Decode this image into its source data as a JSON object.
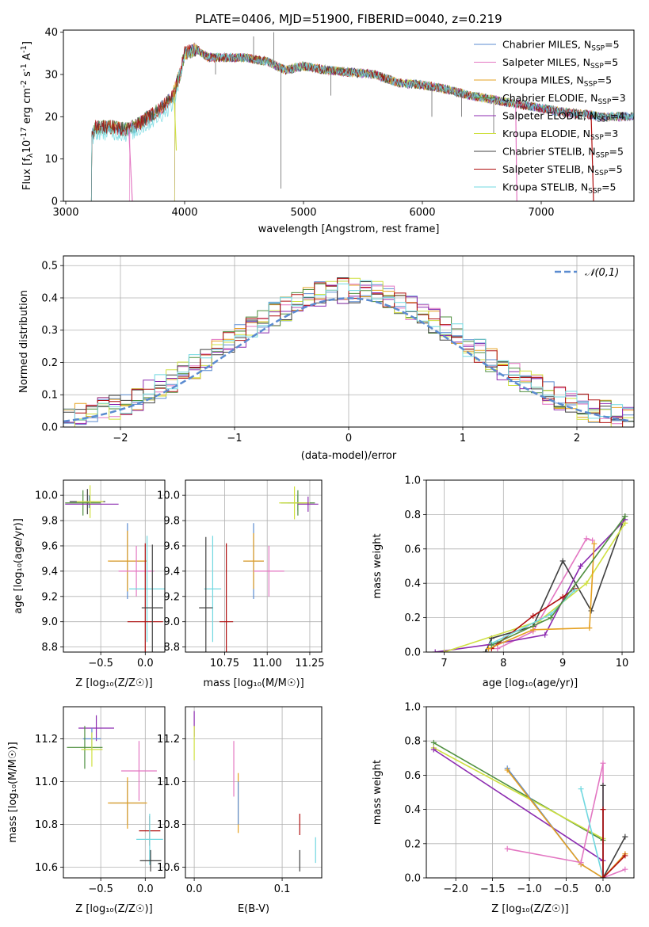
{
  "series_names": [
    "Chabrier MILES",
    "Salpeter MILES",
    "Kroupa MILES",
    "Chabrier ELODIE",
    "Salpeter ELODIE",
    "Kroupa ELODIE",
    "Chabrier STELIB",
    "Salpeter STELIB",
    "Kroupa STELIB"
  ],
  "nssp": [
    5,
    5,
    5,
    3,
    4,
    3,
    5,
    5,
    5
  ],
  "colors": [
    "#5b8bd0",
    "#e377c2",
    "#e5a020",
    "#4f8f3f",
    "#8c2bb0",
    "#cfe040",
    "#404040",
    "#b01010",
    "#70d8e0"
  ],
  "chart_data": [
    {
      "id": "spectrum",
      "type": "line",
      "title": "PLATE=0406, MJD=51900, FIBERID=0040, z=0.219",
      "xlabel": "wavelength [Angstrom, rest frame]",
      "ylabel_parts": [
        "Flux [f",
        "λ",
        "10",
        "-17",
        " erg cm",
        "-2",
        " s",
        "-1",
        " A",
        "-1",
        "]"
      ],
      "xlim": [
        2980,
        7780
      ],
      "ylim": [
        0,
        40.5
      ],
      "xticks": [
        3000,
        4000,
        5000,
        6000,
        7000
      ],
      "yticks": [
        0,
        10,
        20,
        30,
        40
      ],
      "grid": false,
      "legend_position": "upper-right",
      "legend_label_prefix": "N",
      "legend_label_sub": "SSP",
      "continuum": [
        [
          3210,
          14.5
        ],
        [
          3250,
          17.5
        ],
        [
          3400,
          17.5
        ],
        [
          3500,
          17
        ],
        [
          3600,
          18
        ],
        [
          3700,
          20
        ],
        [
          3800,
          22
        ],
        [
          3900,
          25
        ],
        [
          3960,
          30
        ],
        [
          4000,
          35
        ],
        [
          4100,
          36
        ],
        [
          4200,
          34
        ],
        [
          4300,
          34
        ],
        [
          4500,
          34
        ],
        [
          4700,
          33
        ],
        [
          4850,
          31
        ],
        [
          5000,
          32
        ],
        [
          5200,
          31
        ],
        [
          5400,
          30.5
        ],
        [
          5600,
          30
        ],
        [
          5800,
          28
        ],
        [
          6000,
          27.5
        ],
        [
          6200,
          26.5
        ],
        [
          6400,
          25
        ],
        [
          6600,
          24
        ],
        [
          6800,
          23
        ],
        [
          7000,
          22
        ],
        [
          7200,
          21
        ],
        [
          7400,
          20.5
        ],
        [
          7500,
          20
        ]
      ],
      "dropouts": [
        [
          3530,
          3560,
          0
        ],
        [
          3910,
          3930,
          12
        ],
        [
          6785,
          6795,
          0
        ],
        [
          7420,
          7440,
          0
        ]
      ],
      "spikes": [
        [
          4260,
          30
        ],
        [
          4580,
          39
        ],
        [
          4750,
          40
        ],
        [
          4810,
          3
        ],
        [
          5230,
          25
        ],
        [
          6080,
          20
        ],
        [
          6330,
          20
        ],
        [
          6600,
          16
        ]
      ]
    },
    {
      "id": "residuals",
      "type": "histogram",
      "xlabel": "(data-model)/error",
      "ylabel": "Normed distribution",
      "xlim": [
        -2.5,
        2.5
      ],
      "ylim": [
        0,
        0.53
      ],
      "xticks": [
        -2,
        -1,
        0,
        1,
        2
      ],
      "yticks": [
        0.0,
        0.1,
        0.2,
        0.3,
        0.4,
        0.5
      ],
      "grid": true,
      "bin_width": 0.1,
      "reference_label": "𝒩(0,1)",
      "reference_color": "#5b8bd0",
      "legend_position": "upper-right"
    },
    {
      "id": "age-vs-z",
      "type": "errorbar",
      "xlabel": "Z [log₁₀(Z/Z☉)]",
      "ylabel": "age  [log₁₀(age/yr)]",
      "xlim": [
        -0.92,
        0.22
      ],
      "ylim": [
        8.76,
        10.12
      ],
      "xticks": [
        -0.5,
        0.0
      ],
      "yticks": [
        8.8,
        9.0,
        9.2,
        9.4,
        9.6,
        9.8,
        10.0
      ],
      "grid": true,
      "points": [
        {
          "s": 0,
          "x": -0.63,
          "y": 9.95,
          "ex": 0.06,
          "ey": 0.05
        },
        {
          "s": 6,
          "x": -0.65,
          "y": 9.95,
          "ex": 0.2,
          "ey": 0.1
        },
        {
          "s": 3,
          "x": -0.7,
          "y": 9.94,
          "ex": 0.2,
          "ey": 0.1
        },
        {
          "s": 5,
          "x": -0.62,
          "y": 9.95,
          "ex": 0.15,
          "ey": 0.13
        },
        {
          "s": 4,
          "x": -0.6,
          "y": 9.93,
          "ex": 0.3,
          "ey": 0.0
        },
        {
          "s": 0,
          "x": -0.2,
          "y": 9.48,
          "ex": 0.2,
          "ey": 0.3
        },
        {
          "s": 2,
          "x": -0.2,
          "y": 9.48,
          "ex": 0.22,
          "ey": 0.24
        },
        {
          "s": 1,
          "x": -0.1,
          "y": 9.4,
          "ex": 0.2,
          "ey": 0.2
        },
        {
          "s": 8,
          "x": 0.02,
          "y": 9.26,
          "ex": 0.2,
          "ey": 0.42
        },
        {
          "s": 7,
          "x": 0.0,
          "y": 9.0,
          "ex": 0.2,
          "ey": 0.62
        },
        {
          "s": 6,
          "x": 0.08,
          "y": 9.11,
          "ex": 0.12,
          "ey": 0.5
        }
      ]
    },
    {
      "id": "age-vs-mass",
      "type": "errorbar",
      "xlabel": "mass [log₁₀(M/M☉)]",
      "ylabel": "",
      "xlim": [
        10.52,
        11.32
      ],
      "ylim": [
        8.76,
        10.12
      ],
      "xticks": [
        10.75,
        11.0,
        11.25
      ],
      "yticks": [
        8.8,
        9.0,
        9.2,
        9.4,
        9.6,
        9.8,
        10.0
      ],
      "grid": true,
      "points": [
        {
          "s": 0,
          "x": 11.18,
          "y": 9.94,
          "ex": 0.06,
          "ey": 0.06
        },
        {
          "s": 3,
          "x": 11.18,
          "y": 9.94,
          "ex": 0.1,
          "ey": 0.1
        },
        {
          "s": 5,
          "x": 11.16,
          "y": 9.94,
          "ex": 0.09,
          "ey": 0.13
        },
        {
          "s": 4,
          "x": 11.24,
          "y": 9.93,
          "ex": 0.06,
          "ey": 0.06
        },
        {
          "s": 0,
          "x": 10.92,
          "y": 9.48,
          "ex": 0.06,
          "ey": 0.3
        },
        {
          "s": 2,
          "x": 10.92,
          "y": 9.48,
          "ex": 0.06,
          "ey": 0.22
        },
        {
          "s": 1,
          "x": 11.01,
          "y": 9.4,
          "ex": 0.09,
          "ey": 0.2
        },
        {
          "s": 8,
          "x": 10.68,
          "y": 9.26,
          "ex": 0.05,
          "ey": 0.42
        },
        {
          "s": 7,
          "x": 10.76,
          "y": 9.0,
          "ex": 0.04,
          "ey": 0.62
        },
        {
          "s": 6,
          "x": 10.64,
          "y": 9.11,
          "ex": 0.04,
          "ey": 0.56
        }
      ]
    },
    {
      "id": "weight-vs-age",
      "type": "line",
      "xlabel": "age  [log₁₀(age/yr)]",
      "ylabel": "mass weight",
      "xlim": [
        6.7,
        10.2
      ],
      "ylim": [
        0,
        1
      ],
      "xticks": [
        7,
        8,
        9,
        10
      ],
      "yticks": [
        0.0,
        0.2,
        0.4,
        0.6,
        0.8,
        1.0
      ],
      "grid": true,
      "series": [
        {
          "s": 1,
          "x": [
            7.9,
            8.5,
            9.4,
            9.5
          ],
          "y": [
            0.02,
            0.12,
            0.66,
            0.65
          ]
        },
        {
          "s": 6,
          "x": 7.7,
          "y": 0
        },
        {
          "s": 6,
          "x": [
            7.7,
            7.8,
            8.5,
            9.0,
            9.48,
            10.05
          ],
          "y": [
            0.0,
            0.08,
            0.15,
            0.53,
            0.24,
            0.79
          ]
        },
        {
          "s": 4,
          "x": [
            6.85,
            7.9,
            8.7,
            9.3,
            10.05
          ],
          "y": [
            0.0,
            0.05,
            0.1,
            0.5,
            0.77
          ]
        },
        {
          "s": 5,
          "x": [
            7.0,
            8.6,
            9.4,
            10.05
          ],
          "y": [
            0.0,
            0.18,
            0.4,
            0.75
          ]
        },
        {
          "s": 7,
          "x": [
            7.8,
            8.5,
            9.0,
            9.2
          ],
          "y": [
            0.02,
            0.21,
            0.32,
            0.37
          ]
        },
        {
          "s": 8,
          "x": [
            7.8,
            8.8,
            9.2
          ],
          "y": [
            0.05,
            0.22,
            0.36
          ]
        },
        {
          "s": 2,
          "x": [
            7.75,
            8.5,
            9.45,
            9.53
          ],
          "y": [
            0.02,
            0.13,
            0.14,
            0.63
          ]
        },
        {
          "s": 3,
          "x": [
            7.8,
            8.8,
            10.05
          ],
          "y": [
            0.04,
            0.2,
            0.79
          ]
        }
      ]
    },
    {
      "id": "mass-vs-z",
      "type": "errorbar",
      "xlabel": "Z [log₁₀(Z/Z☉)]",
      "ylabel": "mass [log₁₀(M/M☉)]",
      "xlim": [
        -0.92,
        0.22
      ],
      "ylim": [
        10.55,
        11.35
      ],
      "xticks": [
        -0.5,
        0.0
      ],
      "yticks": [
        10.6,
        10.8,
        11.0,
        11.2
      ],
      "grid": true,
      "points": [
        {
          "s": 4,
          "x": -0.55,
          "y": 11.25,
          "ex": 0.2,
          "ey": 0.06
        },
        {
          "s": 0,
          "x": -0.6,
          "y": 11.2,
          "ex": 0.1,
          "ey": 0.05
        },
        {
          "s": 3,
          "x": -0.68,
          "y": 11.16,
          "ex": 0.2,
          "ey": 0.1
        },
        {
          "s": 5,
          "x": -0.6,
          "y": 11.15,
          "ex": 0.12,
          "ey": 0.08
        },
        {
          "s": 1,
          "x": -0.07,
          "y": 11.05,
          "ex": 0.2,
          "ey": 0.14
        },
        {
          "s": 0,
          "x": -0.2,
          "y": 10.9,
          "ex": 0.2,
          "ey": 0.1
        },
        {
          "s": 2,
          "x": -0.2,
          "y": 10.9,
          "ex": 0.22,
          "ey": 0.12
        },
        {
          "s": 7,
          "x": 0.05,
          "y": 10.77,
          "ex": 0.12,
          "ey": 0.07
        },
        {
          "s": 8,
          "x": 0.05,
          "y": 10.73,
          "ex": 0.15,
          "ey": 0.12
        },
        {
          "s": 6,
          "x": 0.06,
          "y": 10.63,
          "ex": 0.12,
          "ey": 0.05
        }
      ]
    },
    {
      "id": "mass-vs-ebv",
      "type": "errorbar",
      "xlabel": "E(B-V)",
      "ylabel": "",
      "xlim": [
        -0.01,
        0.145
      ],
      "ylim": [
        10.55,
        11.35
      ],
      "xticks": [
        0.0,
        0.1
      ],
      "yticks": [
        10.6,
        10.8,
        11.0,
        11.2
      ],
      "grid": true,
      "points": [
        {
          "s": 4,
          "x": 0.0,
          "y": 11.27,
          "ex": 0,
          "ey": 0.06
        },
        {
          "s": 5,
          "x": 0.0,
          "y": 11.18,
          "ex": 0,
          "ey": 0.08
        },
        {
          "s": 1,
          "x": 0.045,
          "y": 11.06,
          "ex": 0,
          "ey": 0.13
        },
        {
          "s": 2,
          "x": 0.05,
          "y": 10.9,
          "ex": 0,
          "ey": 0.14
        },
        {
          "s": 0,
          "x": 0.05,
          "y": 10.9,
          "ex": 0,
          "ey": 0.1
        },
        {
          "s": 7,
          "x": 0.12,
          "y": 10.8,
          "ex": 0,
          "ey": 0.05
        },
        {
          "s": 6,
          "x": 0.12,
          "y": 10.63,
          "ex": 0,
          "ey": 0.05
        },
        {
          "s": 8,
          "x": 0.138,
          "y": 10.68,
          "ex": 0,
          "ey": 0.06
        }
      ]
    },
    {
      "id": "weight-vs-z",
      "type": "line",
      "xlabel": "Z [log₁₀(Z/Z☉)]",
      "ylabel": "mass weight",
      "xlim": [
        -2.4,
        0.42
      ],
      "ylim": [
        0,
        1
      ],
      "xticks": [
        -2.0,
        -1.5,
        -1.0,
        -0.5,
        0.0
      ],
      "yticks": [
        0.0,
        0.2,
        0.4,
        0.6,
        0.8,
        1.0
      ],
      "grid": true,
      "series": [
        {
          "s": 3,
          "x": [
            -2.3,
            0.0
          ],
          "y": [
            0.79,
            0.22
          ]
        },
        {
          "s": 5,
          "x": [
            -2.3,
            0.0
          ],
          "y": [
            0.76,
            0.23
          ]
        },
        {
          "s": 4,
          "x": [
            -2.3,
            0.0
          ],
          "y": [
            0.75,
            0.1
          ]
        },
        {
          "s": 0,
          "x": [
            -1.3,
            -0.3,
            0.0
          ],
          "y": [
            0.64,
            0.08,
            0.0
          ]
        },
        {
          "s": 2,
          "x": [
            -1.3,
            -0.3,
            0.0,
            0.3
          ],
          "y": [
            0.63,
            0.08,
            0.0,
            0.14
          ]
        },
        {
          "s": 1,
          "x": [
            -1.3,
            -0.3,
            0.0,
            0.0,
            0.3
          ],
          "y": [
            0.17,
            0.09,
            0.67,
            0.0,
            0.05
          ]
        },
        {
          "s": 8,
          "x": [
            -0.3,
            0.0
          ],
          "y": [
            0.52,
            0.0
          ]
        },
        {
          "s": 6,
          "x": [
            0.0,
            0.0,
            0.3
          ],
          "y": [
            0.54,
            0.0,
            0.24
          ]
        },
        {
          "s": 7,
          "x": [
            0.0,
            0.0,
            0.3
          ],
          "y": [
            0.4,
            0.0,
            0.13
          ]
        }
      ]
    }
  ]
}
